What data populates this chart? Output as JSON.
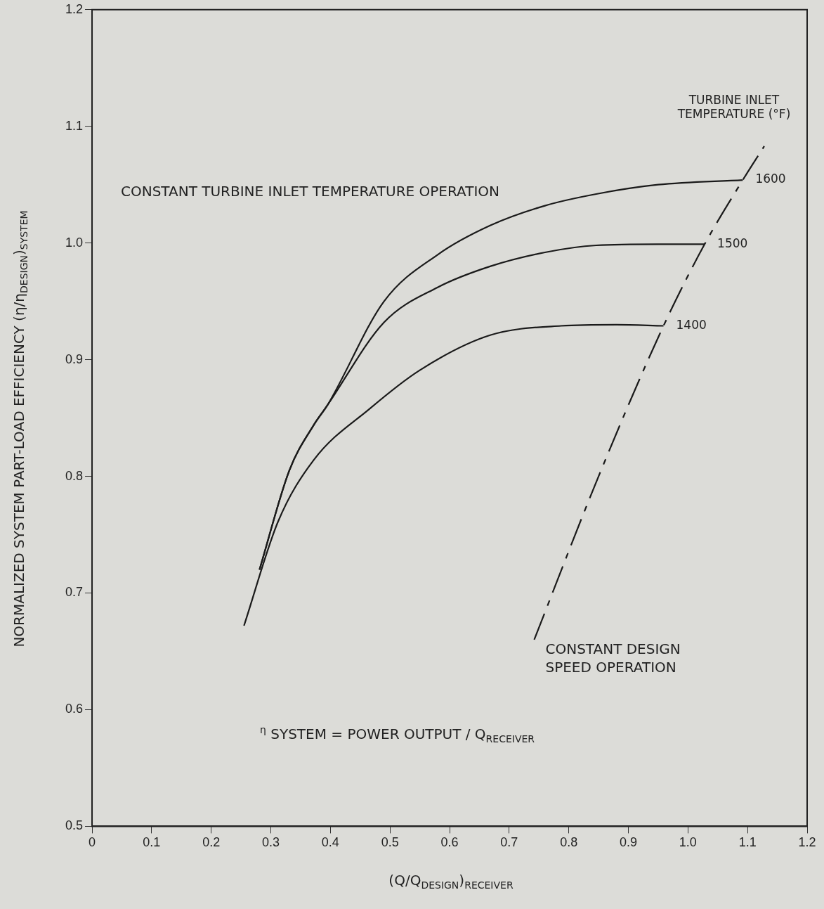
{
  "chart_data": {
    "type": "line",
    "xlabel": "(Q/Q$_{DESIGN}$)$_{RECEIVER}$",
    "ylabel": "NORMALIZED SYSTEM PART-LOAD EFFICIENCY (η/η$_{DESIGN}$)$_{SYSTEM}$",
    "legend_title": "TURBINE INLET TEMPERATURE (°F)",
    "annotations": [
      "CONSTANT TURBINE INLET TEMPERATURE OPERATION",
      "$^{η}$ SYSTEM = POWER OUTPUT / Q$_{RECEIVER}$"
    ],
    "xlim": [
      0,
      1.2
    ],
    "xticks": [
      0,
      0.1,
      0.2,
      0.3,
      0.4,
      0.5,
      0.6,
      0.7,
      0.8,
      0.9,
      {
        "value": 1,
        "label": "1.0"
      },
      1.1,
      1.2
    ],
    "ylim": [
      0.5,
      1.2
    ],
    "yticks": [
      0.5,
      0.6,
      0.7,
      0.8,
      0.9,
      {
        "value": 1,
        "label": "1.0"
      },
      1.1,
      1.2
    ],
    "grid": false,
    "legend": false,
    "marker": "none",
    "line_style": "solid",
    "series": [
      {
        "name": "1600",
        "color": "#1a1a1a",
        "x": [
          0.281,
          0.331,
          0.372,
          0.395,
          0.49,
          0.58,
          0.668,
          0.76,
          0.846,
          0.95,
          1.092
        ],
        "values": [
          0.72,
          0.805,
          0.844,
          0.861,
          0.95,
          0.99,
          1.015,
          1.032,
          1.042,
          1.05,
          1.054
        ]
      },
      {
        "name": "1500",
        "color": "#1a1a1a",
        "x": [
          0.281,
          0.331,
          0.372,
          0.395,
          0.49,
          0.58,
          0.668,
          0.76,
          0.846,
          0.95,
          1.028
        ],
        "values": [
          0.72,
          0.805,
          0.844,
          0.861,
          0.932,
          0.962,
          0.98,
          0.992,
          0.998,
          0.999,
          0.999
        ]
      },
      {
        "name": "1400",
        "color": "#1a1a1a",
        "x": [
          0.255,
          0.312,
          0.372,
          0.466,
          0.55,
          0.668,
          0.787,
          0.88,
          0.959
        ],
        "values": [
          0.672,
          0.761,
          0.814,
          0.858,
          0.891,
          0.921,
          0.929,
          0.93,
          0.929
        ]
      },
      {
        "name": "CONSTANT DESIGN SPEED OPERATION",
        "color": "#1a1a1a",
        "line_style": "dashed",
        "x": [
          0.742,
          0.85,
          0.959,
          1.028,
          1.092,
          1.128
        ],
        "values": [
          0.66,
          0.8,
          0.929,
          0.999,
          1.054,
          1.083
        ]
      }
    ]
  }
}
